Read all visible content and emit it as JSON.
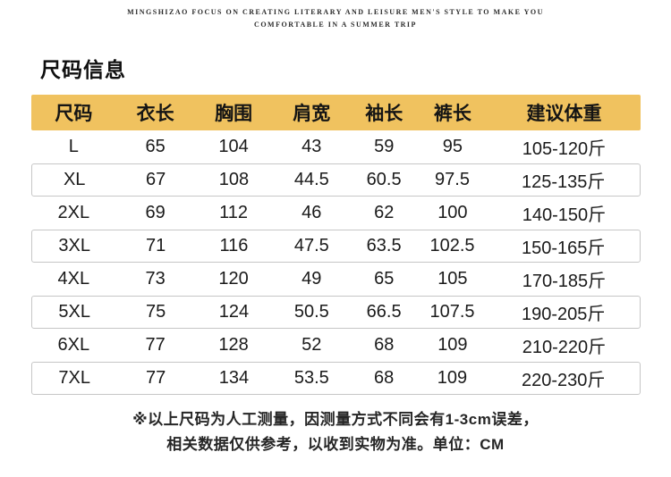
{
  "brand_tagline": {
    "line1": "MINGSHIZAO FOCUS ON CREATING LITERARY AND LEISURE MEN'S STYLE TO MAKE YOU",
    "line2": "COMFORTABLE IN A SUMMER TRIP"
  },
  "section_title": "尺码信息",
  "colors": {
    "header_bg": "#F0C25F",
    "row_border": "#C6C6C6"
  },
  "chart_data": {
    "type": "table",
    "title": "尺码信息",
    "columns": [
      "尺码",
      "衣长",
      "胸围",
      "肩宽",
      "袖长",
      "裤长",
      "建议体重"
    ],
    "rows": [
      {
        "size": "L",
        "values": [
          "65",
          "104",
          "43",
          "59",
          "95",
          "105-120斤"
        ],
        "boxed": false
      },
      {
        "size": "XL",
        "values": [
          "67",
          "108",
          "44.5",
          "60.5",
          "97.5",
          "125-135斤"
        ],
        "boxed": true
      },
      {
        "size": "2XL",
        "values": [
          "69",
          "112",
          "46",
          "62",
          "100",
          "140-150斤"
        ],
        "boxed": false
      },
      {
        "size": "3XL",
        "values": [
          "71",
          "116",
          "47.5",
          "63.5",
          "102.5",
          "150-165斤"
        ],
        "boxed": true
      },
      {
        "size": "4XL",
        "values": [
          "73",
          "120",
          "49",
          "65",
          "105",
          "170-185斤"
        ],
        "boxed": false
      },
      {
        "size": "5XL",
        "values": [
          "75",
          "124",
          "50.5",
          "66.5",
          "107.5",
          "190-205斤"
        ],
        "boxed": true
      },
      {
        "size": "6XL",
        "values": [
          "77",
          "128",
          "52",
          "68",
          "109",
          "210-220斤"
        ],
        "boxed": false
      },
      {
        "size": "7XL",
        "values": [
          "77",
          "134",
          "53.5",
          "68",
          "109",
          "220-230斤"
        ],
        "boxed": true
      }
    ]
  },
  "footnote": {
    "line1": "※以上尺码为人工测量，因测量方式不同会有1-3cm误差，",
    "line2": "相关数据仅供参考，以收到实物为准。单位：CM"
  }
}
